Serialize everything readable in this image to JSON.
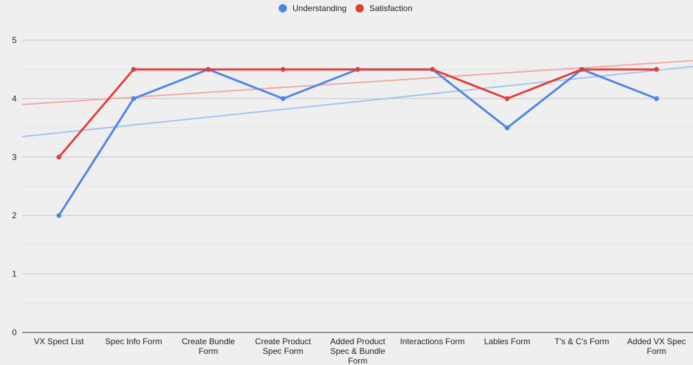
{
  "chart_data": {
    "type": "line",
    "categories": [
      [
        "VX Spect List"
      ],
      [
        "Spec Info Form"
      ],
      [
        "Create Bundle",
        "Form"
      ],
      [
        "Create Product",
        "Spec Form"
      ],
      [
        "Added Product",
        "Spec & Bundle",
        "Form"
      ],
      [
        "Interactions Form"
      ],
      [
        "Lables Form"
      ],
      [
        "T's & C's Form"
      ],
      [
        "Added VX Spec",
        "Form"
      ]
    ],
    "series": [
      {
        "name": "Understanding",
        "color": "#4a86e8",
        "values": [
          2,
          4,
          4.5,
          4,
          4.5,
          4.5,
          3.5,
          4.5,
          4
        ],
        "trendline": {
          "color": "#a4c2f4",
          "start": 3.35,
          "end": 4.55
        }
      },
      {
        "name": "Satisfaction",
        "color": "#e03e36",
        "values": [
          3,
          4.5,
          4.5,
          4.5,
          4.5,
          4.5,
          4,
          4.5,
          4.5
        ],
        "trendline": {
          "color": "#f1a8a4",
          "start": 3.9,
          "end": 4.65
        }
      }
    ],
    "y_ticks": [
      "0",
      "1",
      "2",
      "3",
      "4",
      "5"
    ],
    "ylim": [
      0,
      5
    ],
    "grid": true,
    "legend_position": "top-center"
  }
}
